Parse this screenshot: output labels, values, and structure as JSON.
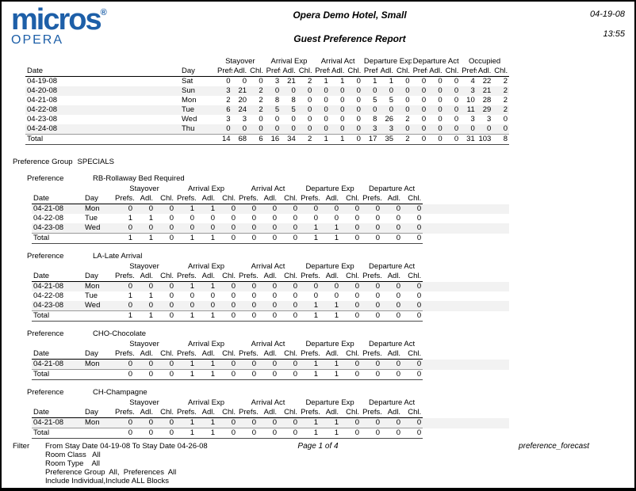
{
  "colors": {
    "brand_blue": "#1d5fa8",
    "stripe": "#f2f2f2"
  },
  "header": {
    "logo_brand": "micros",
    "logo_registered": "®",
    "logo_sub": "OPERA",
    "hotel_name": "Opera Demo Hotel, Small",
    "report_title": "Guest Preference Report",
    "date": "04-19-08",
    "time": "13:55"
  },
  "labels": {
    "date": "Date",
    "day": "Day",
    "prefs": "Prefs.",
    "adl": "Adl.",
    "chl": "Chl.",
    "total": "Total",
    "preference_group_label": "Preference Group",
    "preference_group_name": "SPECIALS",
    "preference_label": "Preference"
  },
  "main_table": {
    "column_groups": [
      "Stayover",
      "Arrival Exp",
      "Arrival Act",
      "Departure Exp",
      "Departure Act",
      "Occupied"
    ],
    "rows": [
      {
        "date": "04-19-08",
        "day": "Sat",
        "values": [
          0,
          0,
          0,
          3,
          21,
          2,
          1,
          1,
          0,
          1,
          1,
          0,
          0,
          0,
          0,
          4,
          22,
          2
        ]
      },
      {
        "date": "04-20-08",
        "day": "Sun",
        "values": [
          3,
          21,
          2,
          0,
          0,
          0,
          0,
          0,
          0,
          0,
          0,
          0,
          0,
          0,
          0,
          3,
          21,
          2
        ]
      },
      {
        "date": "04-21-08",
        "day": "Mon",
        "values": [
          2,
          20,
          2,
          8,
          8,
          0,
          0,
          0,
          0,
          5,
          5,
          0,
          0,
          0,
          0,
          10,
          28,
          2
        ]
      },
      {
        "date": "04-22-08",
        "day": "Tue",
        "values": [
          6,
          24,
          2,
          5,
          5,
          0,
          0,
          0,
          0,
          0,
          0,
          0,
          0,
          0,
          0,
          11,
          29,
          2
        ]
      },
      {
        "date": "04-23-08",
        "day": "Wed",
        "values": [
          3,
          3,
          0,
          0,
          0,
          0,
          0,
          0,
          0,
          8,
          26,
          2,
          0,
          0,
          0,
          3,
          3,
          0
        ]
      },
      {
        "date": "04-24-08",
        "day": "Thu",
        "values": [
          0,
          0,
          0,
          0,
          0,
          0,
          0,
          0,
          0,
          3,
          3,
          0,
          0,
          0,
          0,
          0,
          0,
          0
        ]
      }
    ],
    "total": [
      14,
      68,
      6,
      16,
      34,
      2,
      1,
      1,
      0,
      17,
      35,
      2,
      0,
      0,
      0,
      31,
      103,
      8
    ]
  },
  "sub_column_groups": [
    "Stayover",
    "Arrival Exp",
    "Arrival Act",
    "Departure Exp",
    "Departure Act"
  ],
  "preference_sections": [
    {
      "name": "RB-Rollaway Bed Required",
      "rows": [
        {
          "date": "04-21-08",
          "day": "Mon",
          "values": [
            0,
            0,
            0,
            1,
            1,
            0,
            0,
            0,
            0,
            0,
            0,
            0,
            0,
            0,
            0
          ]
        },
        {
          "date": "04-22-08",
          "day": "Tue",
          "values": [
            1,
            1,
            0,
            0,
            0,
            0,
            0,
            0,
            0,
            0,
            0,
            0,
            0,
            0,
            0
          ]
        },
        {
          "date": "04-23-08",
          "day": "Wed",
          "values": [
            0,
            0,
            0,
            0,
            0,
            0,
            0,
            0,
            0,
            1,
            1,
            0,
            0,
            0,
            0
          ]
        }
      ],
      "total": [
        1,
        1,
        0,
        1,
        1,
        0,
        0,
        0,
        0,
        1,
        1,
        0,
        0,
        0,
        0
      ]
    },
    {
      "name": "LA-Late Arrival",
      "rows": [
        {
          "date": "04-21-08",
          "day": "Mon",
          "values": [
            0,
            0,
            0,
            1,
            1,
            0,
            0,
            0,
            0,
            0,
            0,
            0,
            0,
            0,
            0
          ]
        },
        {
          "date": "04-22-08",
          "day": "Tue",
          "values": [
            1,
            1,
            0,
            0,
            0,
            0,
            0,
            0,
            0,
            0,
            0,
            0,
            0,
            0,
            0
          ]
        },
        {
          "date": "04-23-08",
          "day": "Wed",
          "values": [
            0,
            0,
            0,
            0,
            0,
            0,
            0,
            0,
            0,
            1,
            1,
            0,
            0,
            0,
            0
          ]
        }
      ],
      "total": [
        1,
        1,
        0,
        1,
        1,
        0,
        0,
        0,
        0,
        1,
        1,
        0,
        0,
        0,
        0
      ]
    },
    {
      "name": "CHO-Chocolate",
      "rows": [
        {
          "date": "04-21-08",
          "day": "Mon",
          "values": [
            0,
            0,
            0,
            1,
            1,
            0,
            0,
            0,
            0,
            1,
            1,
            0,
            0,
            0,
            0
          ]
        }
      ],
      "total": [
        0,
        0,
        0,
        1,
        1,
        0,
        0,
        0,
        0,
        1,
        1,
        0,
        0,
        0,
        0
      ]
    },
    {
      "name": "CH-Champagne",
      "rows": [
        {
          "date": "04-21-08",
          "day": "Mon",
          "values": [
            0,
            0,
            0,
            1,
            1,
            0,
            0,
            0,
            0,
            1,
            1,
            0,
            0,
            0,
            0
          ]
        }
      ],
      "total": [
        0,
        0,
        0,
        1,
        1,
        0,
        0,
        0,
        0,
        1,
        1,
        0,
        0,
        0,
        0
      ]
    }
  ],
  "footer": {
    "filter_label": "Filter",
    "filter_lines": [
      "From Stay Date 04-19-08 To Stay Date 04-26-08",
      "Room Class   All",
      "Room Type    All",
      "Preference Group  All,  Preferences  All",
      "Include Individual,Include ALL Blocks"
    ],
    "page_info": "Page 1 of 4",
    "report_name": "preference_forecast"
  }
}
